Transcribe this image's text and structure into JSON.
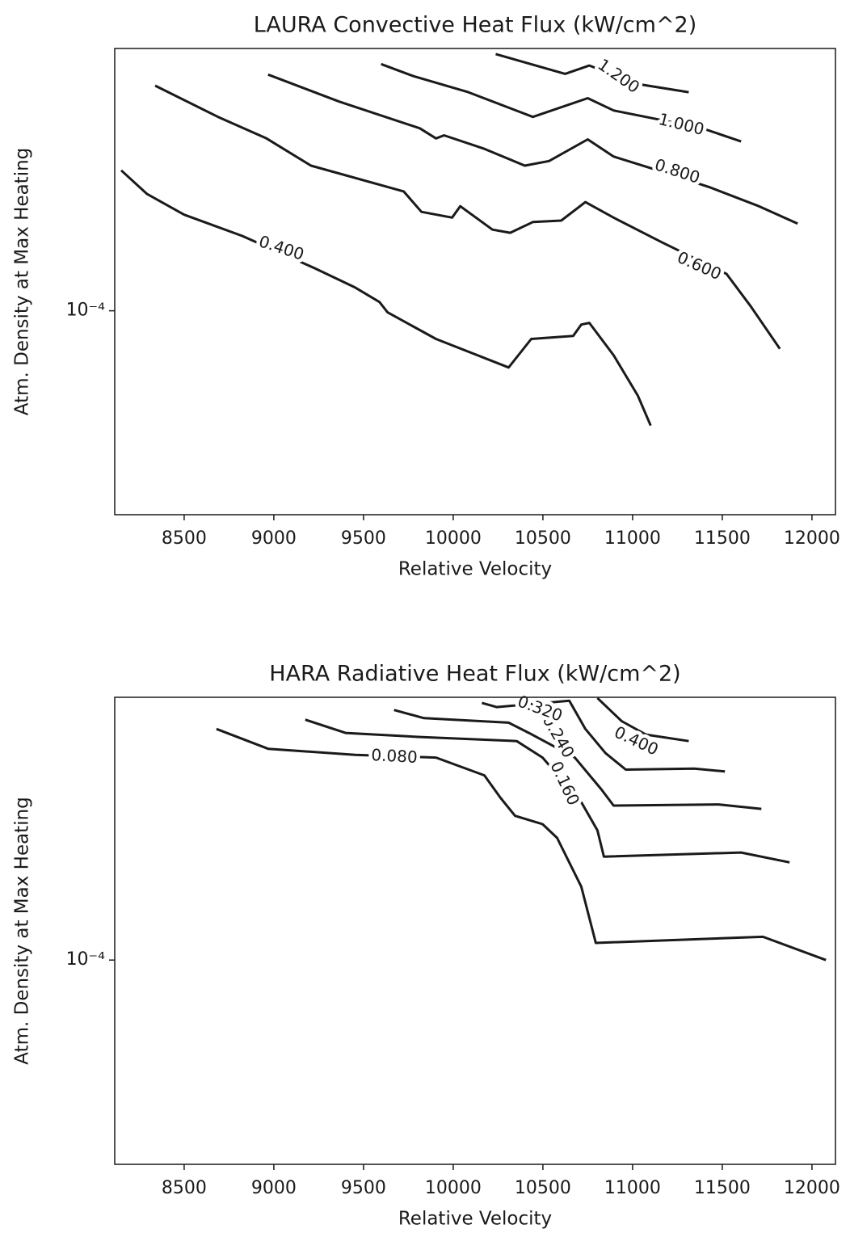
{
  "chart_data": [
    {
      "type": "contour",
      "title": "LAURA Convective Heat Flux (kW/cm^2)",
      "xlabel": "Relative Velocity",
      "ylabel": "Atm. Density at Max Heating",
      "xlim": [
        8113,
        12131
      ],
      "xticks": [
        8500,
        9000,
        9500,
        10000,
        10500,
        11000,
        11500,
        12000
      ],
      "ylim": [
        4e-05,
        0.000325
      ],
      "yticks": [
        {
          "value": 0.0001,
          "label": "10⁻⁴"
        }
      ],
      "log_y": true,
      "color": "#1a1a1a",
      "contours": [
        {
          "level": {
            "value": 0.4,
            "label": "0.400"
          },
          "x": [
            8149,
            8293,
            8500,
            8824,
            9229,
            9454,
            9589,
            9634,
            9904,
            10309,
            10435,
            10669,
            10714,
            10759,
            10894,
            11029,
            11101
          ],
          "y": [
            0.000188,
            0.000169,
            0.000154,
            0.00014,
            0.000121,
            0.000111,
            0.000104,
            9.93e-05,
            8.81e-05,
            7.75e-05,
            8.81e-05,
            8.93e-05,
            9.4e-05,
            9.47e-05,
            8.19e-05,
            6.83e-05,
            5.97e-05
          ]
        },
        {
          "level": {
            "value": 0.6,
            "label": "0.600"
          },
          "x": [
            8338,
            8689,
            8959,
            9207,
            9724,
            9823,
            9994,
            10039,
            10219,
            10318,
            10444,
            10602,
            10737,
            10894,
            11164,
            11524,
            11659,
            11821
          ],
          "y": [
            0.000275,
            0.000239,
            0.000217,
            0.000192,
            0.000171,
            0.000156,
            0.000152,
            0.00016,
            0.000144,
            0.000142,
            0.000149,
            0.00015,
            0.000163,
            0.000152,
            0.000136,
            0.000118,
            0.000102,
            8.43e-05
          ]
        },
        {
          "level": {
            "value": 0.8,
            "label": "0.800"
          },
          "x": [
            8968,
            9364,
            9814,
            9904,
            9949,
            10174,
            10399,
            10534,
            10750,
            10894,
            11119,
            11434,
            11704,
            11920
          ],
          "y": [
            0.000289,
            0.000256,
            0.000227,
            0.000217,
            0.00022,
            0.000207,
            0.000192,
            0.000196,
            0.000216,
            0.0002,
            0.000189,
            0.000174,
            0.00016,
            0.000148
          ]
        },
        {
          "level": {
            "value": 1.0,
            "label": "1.000"
          },
          "x": [
            9598,
            9778,
            10084,
            10444,
            10750,
            10894,
            11074,
            11389,
            11605
          ],
          "y": [
            0.000303,
            0.000287,
            0.000267,
            0.000239,
            0.00026,
            0.000246,
            0.000239,
            0.000227,
            0.000214
          ]
        },
        {
          "level": {
            "value": 1.2,
            "label": "1.200"
          },
          "x": [
            10237,
            10624,
            10759,
            11029,
            11313
          ],
          "y": [
            0.000317,
            0.00029,
            0.000301,
            0.000277,
            0.000267
          ]
        }
      ]
    },
    {
      "type": "contour",
      "title": "HARA Radiative Heat Flux (kW/cm^2)",
      "xlabel": "Relative Velocity",
      "ylabel": "Atm. Density at Max Heating",
      "xlim": [
        8113,
        12131
      ],
      "xticks": [
        8500,
        9000,
        9500,
        10000,
        10500,
        11000,
        11500,
        12000
      ],
      "ylim": [
        4e-05,
        0.000325
      ],
      "yticks": [
        {
          "value": 0.0001,
          "label": "10⁻⁴"
        }
      ],
      "log_y": true,
      "color": "#1a1a1a",
      "contours": [
        {
          "level": {
            "value": 0.08,
            "label": "0.080"
          },
          "x": [
            8680,
            8968,
            9454,
            9904,
            10174,
            10264,
            10345,
            10498,
            10579,
            10714,
            10795,
            11727,
            12078
          ],
          "y": [
            0.000282,
            0.000258,
            0.000251,
            0.000248,
            0.000229,
            0.000207,
            0.000191,
            0.000184,
            0.000173,
            0.000139,
            0.000108,
            0.000111,
            0.0001
          ]
        },
        {
          "level": {
            "value": 0.16,
            "label": "0.160"
          },
          "x": [
            9175,
            9400,
            9814,
            10354,
            10498,
            10714,
            10804,
            10840,
            11605,
            11875
          ],
          "y": [
            0.000294,
            0.000277,
            0.000272,
            0.000267,
            0.000248,
            0.000203,
            0.000179,
            0.000159,
            0.000162,
            0.000155
          ]
        },
        {
          "level": {
            "value": 0.24,
            "label": "0.240"
          },
          "x": [
            9670,
            9837,
            10309,
            10422,
            10678,
            10826,
            10894,
            11479,
            11718
          ],
          "y": [
            0.000307,
            0.000296,
            0.00029,
            0.000277,
            0.000248,
            0.000215,
            0.0002,
            0.000201,
            0.000197
          ]
        },
        {
          "level": {
            "value": 0.32,
            "label": "0.320"
          },
          "x": [
            10160,
            10242,
            10647,
            10737,
            10849,
            10962,
            11344,
            11515
          ],
          "y": [
            0.000317,
            0.000311,
            0.00032,
            0.000282,
            0.000253,
            0.000235,
            0.000236,
            0.000233
          ]
        },
        {
          "level": {
            "value": 0.4,
            "label": "0.400"
          },
          "x": [
            10804,
            10939,
            11074,
            11313
          ],
          "y": [
            0.000324,
            0.000292,
            0.000275,
            0.000267
          ]
        }
      ]
    }
  ]
}
